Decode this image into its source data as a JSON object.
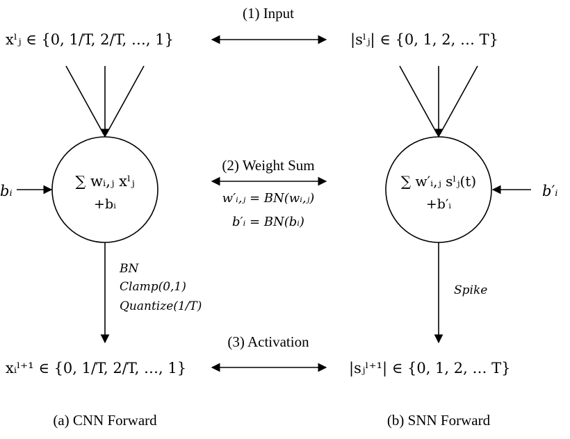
{
  "diagram": {
    "top_arrow_label": "(1) Input",
    "middle_arrow_label": "(2) Weight Sum",
    "bottom_arrow_label": "(3) Activation",
    "middle_eq1": "w′ᵢ,ⱼ = BN(wᵢ,ⱼ)",
    "middle_eq2": "b′ᵢ = BN(bᵢ)",
    "left": {
      "caption": "(a) CNN Forward",
      "input_math": "xˡⱼ ∈ {0, 1/T, 2/T, …, 1}",
      "neuron_line1": "∑ wᵢ,ⱼ xˡⱼ",
      "neuron_line2": "+bᵢ",
      "bias_label": "bᵢ",
      "ops": [
        "BN",
        "Clamp(0,1)",
        "Quantize(1/T)"
      ],
      "output_math": "xᵢˡ⁺¹ ∈ {0, 1/T, 2/T, …, 1}"
    },
    "right": {
      "caption": "(b) SNN Forward",
      "input_math": "|sˡⱼ| ∈ {0, 1, 2, … T}",
      "neuron_line1": "∑ w′ᵢ,ⱼ sˡⱼ(t)",
      "neuron_line2": "+b′ᵢ",
      "bias_label": "b′ᵢ",
      "op": "Spike",
      "output_math": "|sⱼˡ⁺¹| ∈ {0, 1, 2, … T}"
    }
  }
}
